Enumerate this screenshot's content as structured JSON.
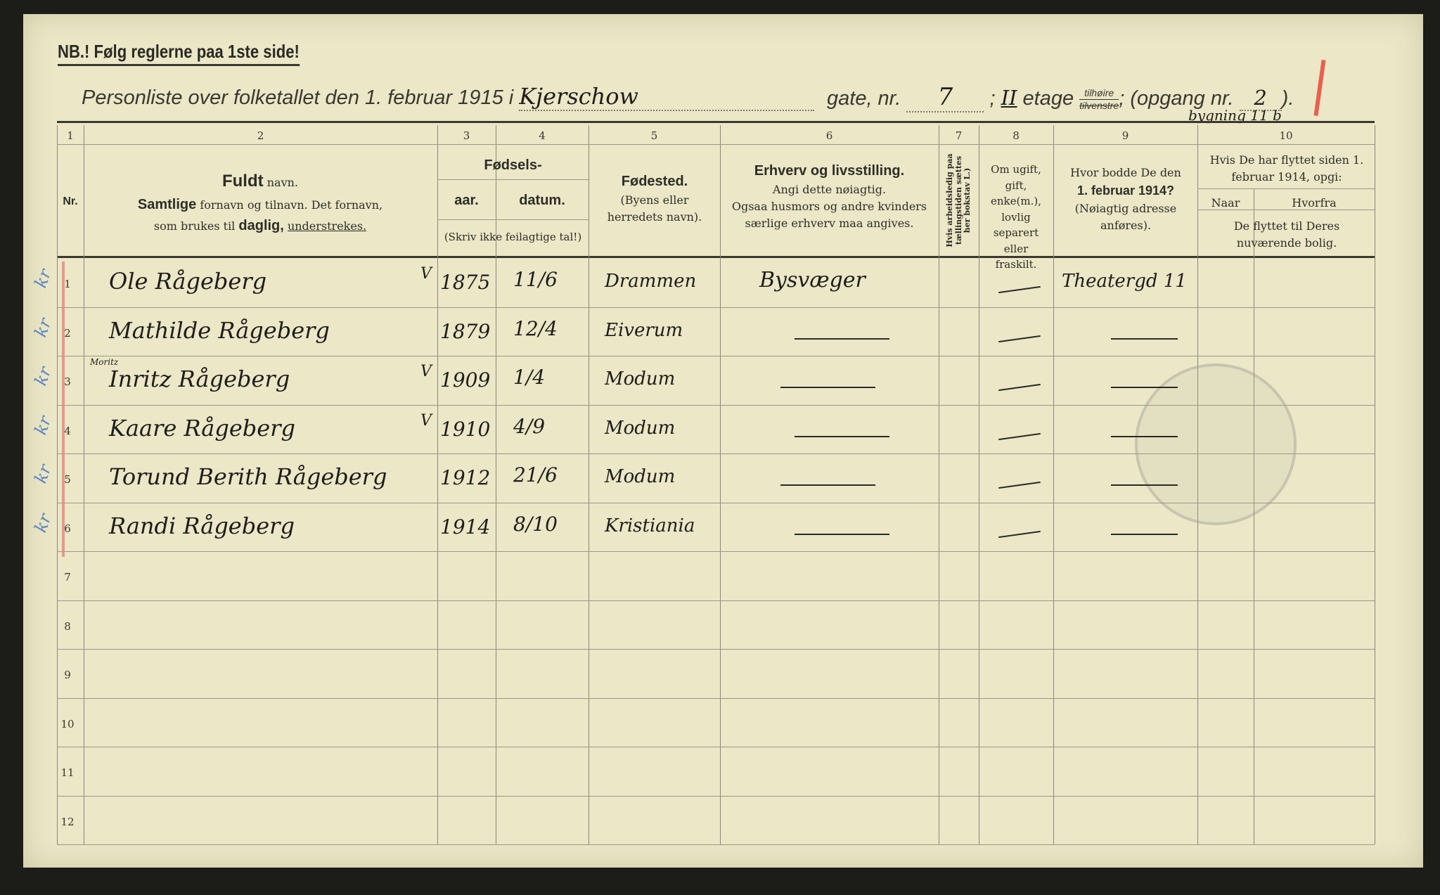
{
  "notice": "NB.! Følg reglerne paa 1ste side!",
  "title": {
    "prefix": "Personliste over folketallet den 1. februar 1915 i",
    "street": "Kjerschow",
    "gate_label": "gate, nr.",
    "number": "7",
    "floor": "II",
    "etage_label": "etage",
    "side_right": "tilhøire",
    "side_left_struck": "tilvenstre",
    "opgang_label": "; (opgang nr.",
    "opgang": "2",
    "close": ").",
    "building_note": "bygning 11 b"
  },
  "columns": {
    "numbers": [
      "1",
      "2",
      "3",
      "4",
      "5",
      "6",
      "7",
      "8",
      "9",
      "10"
    ],
    "nr": "Nr.",
    "name_title_bold": "Fuldt",
    "name_title": "navn.",
    "name_desc_bold": "Samtlige",
    "name_desc": "fornavn og tilnavn. Det fornavn,",
    "name_desc2": "som brukes til",
    "name_desc2_bold": "daglig,",
    "name_desc2_underline": "understrekes.",
    "birth": "Fødsels-",
    "year": "aar.",
    "date": "datum.",
    "birth_note": "(Skriv ikke feilagtige tal!)",
    "birthplace": "Fødested.",
    "birthplace_note": "(Byens eller herredets navn).",
    "occupation": "Erhverv og livsstilling.",
    "occupation_note1": "Angi dette nøiagtig.",
    "occupation_note2": "Ogsaa husmors og andre kvinders særlige erhverv maa angives.",
    "unemployed": "Hvis arbeidsledig paa tællingstiden sættes her bokstav L.)",
    "marital": "Om ugift, gift, enke(m.), lovlig separert eller fraskilt.",
    "prev_address1": "Hvor bodde De den",
    "prev_address_bold": "1. februar 1914?",
    "prev_address2": "(Nøiagtig adresse anføres).",
    "moved": "Hvis De har flyttet siden 1. februar 1914, opgi:",
    "moved_when": "Naar",
    "moved_from": "Hvorfra",
    "moved_note": "De flyttet til Deres nuværende bolig."
  },
  "row_numbers": [
    "1",
    "2",
    "3",
    "4",
    "5",
    "6",
    "7",
    "8",
    "9",
    "10",
    "11",
    "12"
  ],
  "rows": [
    {
      "name": "Ole Rågeberg",
      "check": "V",
      "year": "1875",
      "date": "11/6",
      "birthplace": "Drammen",
      "occupation": "Bysvæger",
      "marital": "—",
      "prev_address": "Theatergd 11"
    },
    {
      "name": "Mathilde Rågeberg",
      "check": "",
      "year": "1879",
      "date": "12/4",
      "birthplace": "Eiverum",
      "occupation": "—",
      "marital": "—",
      "prev_address": "—"
    },
    {
      "name": "Inritz Rågeberg",
      "note": "Moritz",
      "check": "V",
      "year": "1909",
      "date": "1/4",
      "birthplace": "Modum",
      "occupation": "—",
      "marital": "—",
      "prev_address": "—"
    },
    {
      "name": "Kaare Rågeberg",
      "check": "V",
      "year": "1910",
      "date": "4/9",
      "birthplace": "Modum",
      "occupation": "—",
      "marital": "—",
      "prev_address": "—"
    },
    {
      "name": "Torund Berith Rågeberg",
      "check": "",
      "year": "1912",
      "date": "21/6",
      "birthplace": "Modum",
      "occupation": "—",
      "marital": "—",
      "prev_address": "—"
    },
    {
      "name": "Randi Rågeberg",
      "check": "",
      "year": "1914",
      "date": "8/10",
      "birthplace": "Kristiania",
      "occupation": "—",
      "marital": "—",
      "prev_address": "—"
    }
  ],
  "margin_marks": [
    "kr",
    "kr",
    "kr",
    "kr",
    "kr",
    "kr"
  ]
}
